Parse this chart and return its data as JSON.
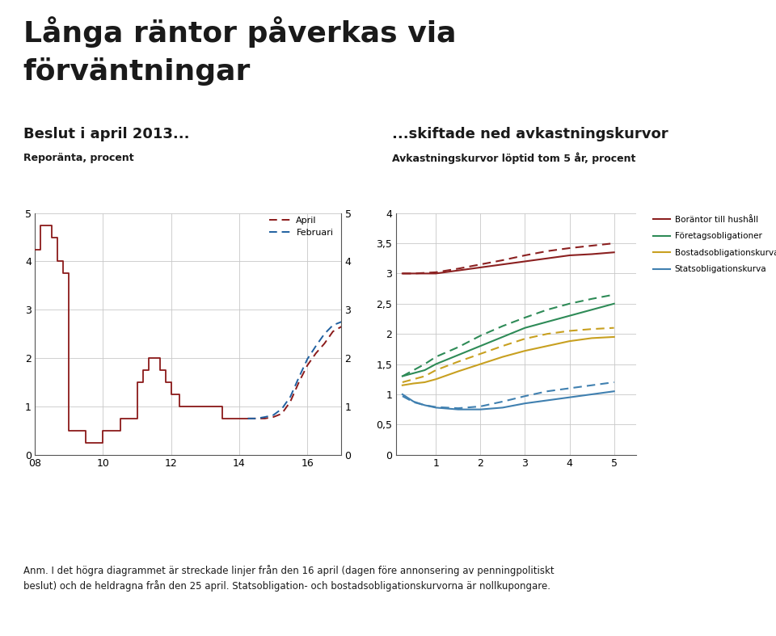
{
  "title_main_line1": "Långa räntor påverkas via",
  "title_main_line2": "förväntningar",
  "left_title": "Beslut i april 2013...",
  "left_subtitle": "Reporänta, procent",
  "right_title": "...skiftade ned avkastningskurvor",
  "right_subtitle": "Avkastningskurvor löptid tom 5 år, procent",
  "footnote": "Anm. I det högra diagrammet är streckade linjer från den 16 april (dagen före annonsering av penningpolitiskt\nbeslut) och de heldragna från den 25 april. Statsobligation- och bostadsobligationskurvorna är nollkupongare.",
  "left_chart": {
    "step_x": [
      8.0,
      8.17,
      8.33,
      8.5,
      8.67,
      8.83,
      9.0,
      9.5,
      10.0,
      10.5,
      11.0,
      11.17,
      11.33,
      11.5,
      11.67,
      11.83,
      12.0,
      12.25,
      12.5,
      12.75,
      13.0,
      13.5,
      14.0,
      14.25
    ],
    "step_y": [
      4.25,
      4.75,
      4.75,
      4.5,
      4.0,
      3.75,
      0.5,
      0.25,
      0.5,
      0.75,
      1.5,
      1.75,
      2.0,
      2.0,
      1.75,
      1.5,
      1.25,
      1.0,
      1.0,
      1.0,
      1.0,
      0.75,
      0.75,
      0.75
    ],
    "april_x": [
      14.25,
      14.5,
      14.75,
      15.0,
      15.25,
      15.5,
      15.75,
      16.0,
      16.25,
      16.5,
      16.75,
      17.0
    ],
    "april_y": [
      0.75,
      0.75,
      0.75,
      0.78,
      0.85,
      1.1,
      1.5,
      1.85,
      2.1,
      2.3,
      2.55,
      2.65
    ],
    "februari_x": [
      14.25,
      14.5,
      14.75,
      15.0,
      15.25,
      15.5,
      15.75,
      16.0,
      16.25,
      16.5,
      16.75,
      17.0
    ],
    "februari_y": [
      0.75,
      0.75,
      0.78,
      0.82,
      0.95,
      1.2,
      1.6,
      1.98,
      2.25,
      2.5,
      2.68,
      2.75
    ],
    "ylim": [
      0,
      5
    ],
    "xlim": [
      8,
      17
    ],
    "xticks": [
      8,
      10,
      12,
      14,
      16
    ],
    "xticklabels": [
      "08",
      "10",
      "12",
      "14",
      "16"
    ],
    "yticks": [
      0,
      1,
      2,
      3,
      4,
      5
    ],
    "step_color": "#8B1A1A",
    "april_color": "#8B1A1A",
    "februari_color": "#2060A0"
  },
  "right_chart": {
    "x": [
      0.25,
      0.5,
      0.75,
      1.0,
      1.5,
      2.0,
      2.5,
      3.0,
      3.5,
      4.0,
      4.5,
      5.0
    ],
    "borantor_april": [
      3.0,
      3.0,
      3.0,
      3.0,
      3.05,
      3.1,
      3.15,
      3.2,
      3.25,
      3.3,
      3.32,
      3.35
    ],
    "borantor_feb": [
      3.0,
      3.0,
      3.01,
      3.02,
      3.08,
      3.15,
      3.22,
      3.3,
      3.37,
      3.42,
      3.46,
      3.5
    ],
    "foretag_april": [
      1.3,
      1.35,
      1.4,
      1.5,
      1.65,
      1.8,
      1.95,
      2.1,
      2.2,
      2.3,
      2.4,
      2.5
    ],
    "foretag_feb": [
      1.3,
      1.4,
      1.5,
      1.62,
      1.78,
      1.97,
      2.13,
      2.27,
      2.4,
      2.5,
      2.58,
      2.65
    ],
    "bostads_april": [
      1.15,
      1.18,
      1.2,
      1.25,
      1.38,
      1.5,
      1.62,
      1.72,
      1.8,
      1.88,
      1.93,
      1.95
    ],
    "bostads_feb": [
      1.2,
      1.25,
      1.3,
      1.4,
      1.54,
      1.67,
      1.8,
      1.92,
      2.0,
      2.05,
      2.08,
      2.1
    ],
    "stats_april": [
      1.0,
      0.88,
      0.82,
      0.78,
      0.75,
      0.75,
      0.78,
      0.85,
      0.9,
      0.95,
      1.0,
      1.05
    ],
    "stats_feb": [
      0.97,
      0.87,
      0.82,
      0.79,
      0.77,
      0.8,
      0.88,
      0.97,
      1.05,
      1.1,
      1.15,
      1.2
    ],
    "ylim": [
      0,
      4
    ],
    "xlim": [
      0.1,
      5.5
    ],
    "xticks": [
      1,
      2,
      3,
      4,
      5
    ],
    "yticks": [
      0,
      0.5,
      1.0,
      1.5,
      2.0,
      2.5,
      3.0,
      3.5,
      4.0
    ],
    "yticklabels": [
      "0",
      "0,5",
      "1",
      "1,5",
      "2",
      "2,5",
      "3",
      "3,5",
      "4"
    ],
    "borantor_color": "#8B2020",
    "foretag_color": "#2E8B57",
    "bostads_color": "#C8A020",
    "stats_color": "#4080B0",
    "legend_labels": [
      "Boräntor till hushåll",
      "Företagsobligationer",
      "Bostadsobligationskurva",
      "Statsobligationskurva"
    ]
  },
  "background_color": "#FFFFFF",
  "grid_color": "#C8C8C8",
  "text_color": "#1A1A1A",
  "footnote_bar_color": "#003399"
}
